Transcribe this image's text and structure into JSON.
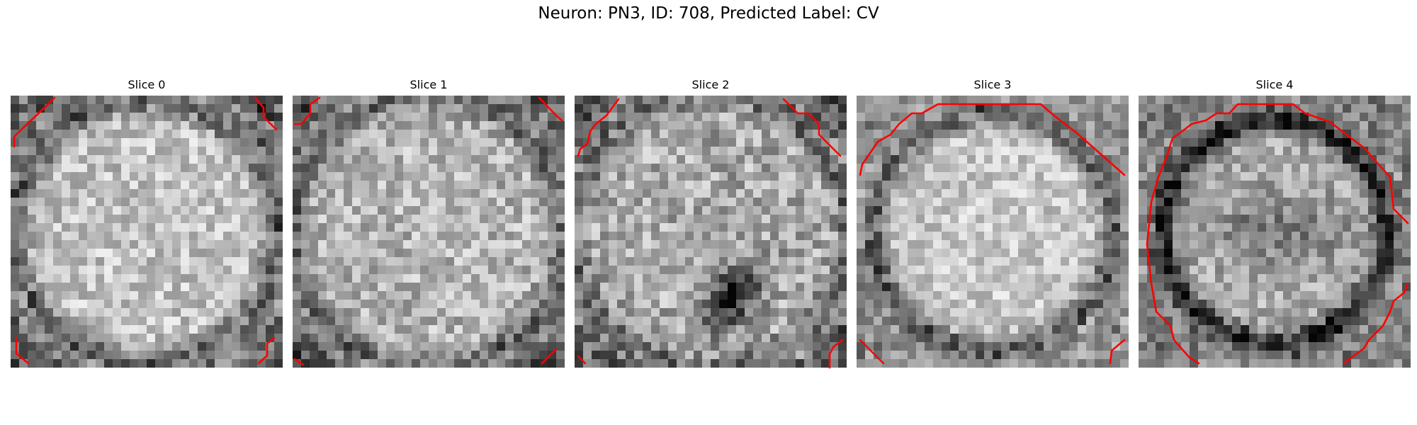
{
  "figure": {
    "title": "Neuron: PN3, ID: 708, Predicted Label: CV"
  },
  "contour_color": "#ff0000",
  "colormap": "grayscale",
  "slices": [
    {
      "title": "Slice 0"
    },
    {
      "title": "Slice 1"
    },
    {
      "title": "Slice 2"
    },
    {
      "title": "Slice 3"
    },
    {
      "title": "Slice 4"
    }
  ]
}
